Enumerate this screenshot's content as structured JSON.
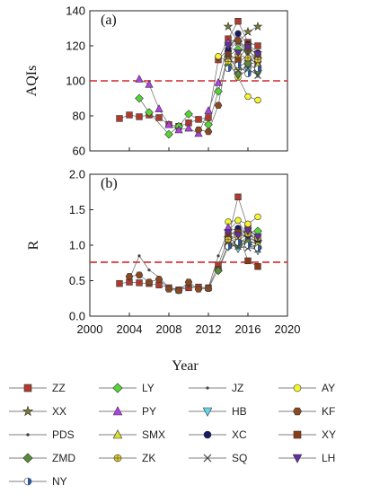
{
  "figure": {
    "xlabel": "Year",
    "x_ticks": [
      2000,
      2004,
      2008,
      2012,
      2016,
      2020
    ]
  },
  "chart_data": [
    {
      "type": "line",
      "panel_label": "(a)",
      "ylabel": "AQIs",
      "xlim": [
        2000,
        2020
      ],
      "ylim": [
        60,
        140
      ],
      "y_ticks": [
        60,
        80,
        100,
        120,
        140
      ],
      "reference_line": 100,
      "series": [
        {
          "name": "ZZ",
          "points": [
            [
              2003,
              78.5
            ],
            [
              2004,
              80.5
            ],
            [
              2005,
              79.5
            ],
            [
              2006,
              80.5
            ],
            [
              2007,
              79
            ],
            [
              2008,
              75
            ],
            [
              2009,
              74
            ],
            [
              2010,
              76
            ],
            [
              2011,
              78
            ],
            [
              2012,
              79
            ],
            [
              2013,
              112
            ],
            [
              2014,
              124
            ],
            [
              2015,
              134
            ],
            [
              2016,
              122
            ],
            [
              2017,
              120
            ]
          ]
        },
        {
          "name": "LY",
          "points": [
            [
              2005,
              90
            ],
            [
              2006,
              82
            ],
            [
              2008,
              69.5
            ],
            [
              2009,
              74
            ],
            [
              2010,
              81
            ],
            [
              2012,
              75
            ],
            [
              2013,
              94
            ],
            [
              2014,
              114
            ],
            [
              2015,
              118
            ],
            [
              2016,
              117
            ],
            [
              2017,
              113
            ]
          ]
        },
        {
          "name": "JZ",
          "points": [
            [
              2013,
              112
            ],
            [
              2014,
              118
            ],
            [
              2015,
              125
            ],
            [
              2016,
              115
            ],
            [
              2017,
              112
            ]
          ]
        },
        {
          "name": "AY",
          "points": [
            [
              2013,
              114
            ],
            [
              2014,
              111
            ],
            [
              2015,
              102
            ],
            [
              2016,
              91
            ],
            [
              2017,
              89
            ]
          ]
        },
        {
          "name": "XX",
          "points": [
            [
              2014,
              131
            ],
            [
              2015,
              122
            ],
            [
              2016,
              128
            ],
            [
              2017,
              131
            ]
          ]
        },
        {
          "name": "PY",
          "points": [
            [
              2005,
              101
            ],
            [
              2006,
              98
            ],
            [
              2007,
              84
            ],
            [
              2008,
              75
            ],
            [
              2009,
              72
            ],
            [
              2010,
              73
            ],
            [
              2011,
              70
            ],
            [
              2012,
              83
            ],
            [
              2013,
              99
            ],
            [
              2014,
              122
            ],
            [
              2015,
              124
            ],
            [
              2016,
              113
            ],
            [
              2017,
              110
            ]
          ]
        },
        {
          "name": "HB",
          "points": [
            [
              2014,
              110
            ],
            [
              2015,
              103
            ],
            [
              2016,
              106
            ],
            [
              2017,
              104
            ]
          ]
        },
        {
          "name": "KF",
          "points": [
            [
              2011,
              72
            ],
            [
              2012,
              71
            ],
            [
              2013,
              86
            ],
            [
              2014,
              117
            ],
            [
              2015,
              123
            ],
            [
              2016,
              118
            ],
            [
              2017,
              111
            ]
          ]
        },
        {
          "name": "PDS",
          "points": [
            [
              2014,
              112
            ],
            [
              2015,
              110
            ],
            [
              2016,
              115
            ],
            [
              2017,
              108
            ]
          ]
        },
        {
          "name": "SMX",
          "points": [
            [
              2014,
              113
            ],
            [
              2015,
              108
            ],
            [
              2016,
              111
            ],
            [
              2017,
              109
            ]
          ]
        },
        {
          "name": "XC",
          "points": [
            [
              2014,
              118
            ],
            [
              2015,
              127
            ],
            [
              2016,
              121
            ],
            [
              2017,
              116
            ]
          ]
        },
        {
          "name": "XY",
          "points": [
            [
              2014,
              115
            ],
            [
              2015,
              112
            ],
            [
              2016,
              120
            ],
            [
              2017,
              114
            ]
          ]
        },
        {
          "name": "ZMD",
          "points": [
            [
              2014,
              109
            ],
            [
              2015,
              104
            ],
            [
              2016,
              110
            ],
            [
              2017,
              106
            ]
          ]
        },
        {
          "name": "ZK",
          "points": [
            [
              2014,
              111
            ],
            [
              2015,
              115
            ],
            [
              2016,
              113
            ],
            [
              2017,
              112
            ]
          ]
        },
        {
          "name": "SQ",
          "points": [
            [
              2014,
              114
            ],
            [
              2015,
              106
            ],
            [
              2016,
              107
            ],
            [
              2017,
              103
            ]
          ]
        },
        {
          "name": "LH",
          "points": [
            [
              2014,
              120
            ],
            [
              2015,
              116
            ],
            [
              2016,
              119
            ],
            [
              2017,
              115
            ]
          ]
        },
        {
          "name": "NY",
          "points": [
            [
              2014,
              107
            ],
            [
              2015,
              109
            ],
            [
              2016,
              104
            ],
            [
              2017,
              107
            ]
          ]
        }
      ]
    },
    {
      "type": "line",
      "panel_label": "(b)",
      "ylabel": "R",
      "xlim": [
        2000,
        2020
      ],
      "ylim": [
        0.0,
        2.0
      ],
      "y_ticks": [
        "0.0",
        "0.5",
        "1.0",
        "1.5",
        "2.0"
      ],
      "reference_line": 0.76,
      "series": [
        {
          "name": "ZZ",
          "points": [
            [
              2003,
              0.46
            ],
            [
              2004,
              0.48
            ],
            [
              2005,
              0.47
            ],
            [
              2006,
              0.46
            ],
            [
              2007,
              0.44
            ],
            [
              2008,
              0.4
            ],
            [
              2009,
              0.37
            ],
            [
              2010,
              0.4
            ],
            [
              2011,
              0.41
            ],
            [
              2012,
              0.4
            ],
            [
              2013,
              0.72
            ],
            [
              2014,
              1.1
            ],
            [
              2015,
              1.68
            ],
            [
              2016,
              1.25
            ],
            [
              2017,
              1.1
            ]
          ]
        },
        {
          "name": "LY",
          "points": [
            [
              2014,
              1.0
            ],
            [
              2015,
              1.05
            ],
            [
              2016,
              1.18
            ],
            [
              2017,
              1.2
            ]
          ]
        },
        {
          "name": "JZ",
          "points": [
            [
              2004,
              0.52
            ],
            [
              2005,
              0.85
            ],
            [
              2006,
              0.65
            ],
            [
              2007,
              0.55
            ],
            [
              2008,
              0.4
            ],
            [
              2009,
              0.38
            ],
            [
              2010,
              0.42
            ],
            [
              2011,
              0.4
            ],
            [
              2012,
              0.4
            ],
            [
              2013,
              0.85
            ],
            [
              2014,
              1.2
            ],
            [
              2015,
              1.35
            ],
            [
              2016,
              1.1
            ],
            [
              2017,
              1.05
            ]
          ]
        },
        {
          "name": "AY",
          "points": [
            [
              2014,
              1.33
            ],
            [
              2015,
              1.35
            ],
            [
              2016,
              1.3
            ],
            [
              2017,
              1.4
            ]
          ]
        },
        {
          "name": "XX",
          "points": [
            [
              2014,
              1.1
            ],
            [
              2015,
              1.02
            ],
            [
              2016,
              1.12
            ],
            [
              2017,
              1.05
            ]
          ]
        },
        {
          "name": "PY",
          "points": [
            [
              2014,
              1.25
            ],
            [
              2015,
              1.2
            ],
            [
              2016,
              1.08
            ],
            [
              2017,
              1.0
            ]
          ]
        },
        {
          "name": "HB",
          "points": [
            [
              2014,
              1.05
            ],
            [
              2015,
              0.95
            ],
            [
              2016,
              1.0
            ],
            [
              2017,
              0.92
            ]
          ]
        },
        {
          "name": "KF",
          "points": [
            [
              2004,
              0.56
            ],
            [
              2005,
              0.58
            ],
            [
              2006,
              0.48
            ],
            [
              2007,
              0.52
            ],
            [
              2008,
              0.38
            ],
            [
              2009,
              0.36
            ],
            [
              2010,
              0.48
            ],
            [
              2011,
              0.38
            ],
            [
              2012,
              0.39
            ],
            [
              2013,
              0.66
            ],
            [
              2014,
              1.02
            ],
            [
              2015,
              1.22
            ],
            [
              2016,
              1.18
            ],
            [
              2017,
              1.05
            ]
          ]
        },
        {
          "name": "PDS",
          "points": [
            [
              2014,
              1.05
            ],
            [
              2015,
              1.1
            ],
            [
              2016,
              1.02
            ],
            [
              2017,
              0.98
            ]
          ]
        },
        {
          "name": "SMX",
          "points": [
            [
              2014,
              1.0
            ],
            [
              2015,
              1.08
            ],
            [
              2016,
              1.05
            ],
            [
              2017,
              1.02
            ]
          ]
        },
        {
          "name": "XC",
          "points": [
            [
              2014,
              1.12
            ],
            [
              2015,
              1.24
            ],
            [
              2016,
              1.14
            ],
            [
              2017,
              1.08
            ]
          ]
        },
        {
          "name": "XY",
          "points": [
            [
              2014,
              1.15
            ],
            [
              2015,
              1.18
            ],
            [
              2016,
              0.78
            ],
            [
              2017,
              0.7
            ]
          ]
        },
        {
          "name": "ZMD",
          "points": [
            [
              2013,
              0.64
            ],
            [
              2014,
              0.98
            ],
            [
              2015,
              1.0
            ],
            [
              2016,
              1.04
            ],
            [
              2017,
              0.96
            ]
          ]
        },
        {
          "name": "ZK",
          "points": [
            [
              2014,
              1.08
            ],
            [
              2015,
              1.12
            ],
            [
              2016,
              1.16
            ],
            [
              2017,
              1.1
            ]
          ]
        },
        {
          "name": "SQ",
          "points": [
            [
              2014,
              1.02
            ],
            [
              2015,
              0.98
            ],
            [
              2016,
              0.96
            ],
            [
              2017,
              0.94
            ]
          ]
        },
        {
          "name": "LH",
          "points": [
            [
              2014,
              1.18
            ],
            [
              2015,
              1.14
            ],
            [
              2016,
              1.2
            ],
            [
              2017,
              1.12
            ]
          ]
        },
        {
          "name": "NY",
          "points": [
            [
              2014,
              0.98
            ],
            [
              2015,
              1.04
            ],
            [
              2016,
              1.0
            ],
            [
              2017,
              0.96
            ]
          ]
        }
      ]
    }
  ],
  "legend": [
    {
      "name": "ZZ",
      "marker": "square",
      "color": "#b03a2e"
    },
    {
      "name": "LY",
      "marker": "diamond",
      "color": "#55d636"
    },
    {
      "name": "JZ",
      "marker": "dot",
      "color": "#444444"
    },
    {
      "name": "AY",
      "marker": "circle",
      "color": "#f4f430"
    },
    {
      "name": "XX",
      "marker": "star",
      "color": "#7a7a30"
    },
    {
      "name": "PY",
      "marker": "triangle",
      "color": "#b040e8"
    },
    {
      "name": "HB",
      "marker": "triangle-down",
      "color": "#66d6ee"
    },
    {
      "name": "KF",
      "marker": "hexagon",
      "color": "#8a4a20"
    },
    {
      "name": "PDS",
      "marker": "dot",
      "color": "#333333"
    },
    {
      "name": "SMX",
      "marker": "triangle",
      "color": "#d8e030"
    },
    {
      "name": "XC",
      "marker": "circle",
      "color": "#1a1a60"
    },
    {
      "name": "XY",
      "marker": "square",
      "color": "#8a3a14"
    },
    {
      "name": "ZMD",
      "marker": "diamond",
      "color": "#5a8a3a"
    },
    {
      "name": "ZK",
      "marker": "circle-plus",
      "color": "#e8d020"
    },
    {
      "name": "SQ",
      "marker": "x",
      "color": "#444444"
    },
    {
      "name": "LH",
      "marker": "triangle-down",
      "color": "#6030a0"
    },
    {
      "name": "NY",
      "marker": "circle-half",
      "color": "#2a5a9a"
    }
  ],
  "colors": {
    "reference_line": "#d4262a",
    "connector": "#666666"
  }
}
